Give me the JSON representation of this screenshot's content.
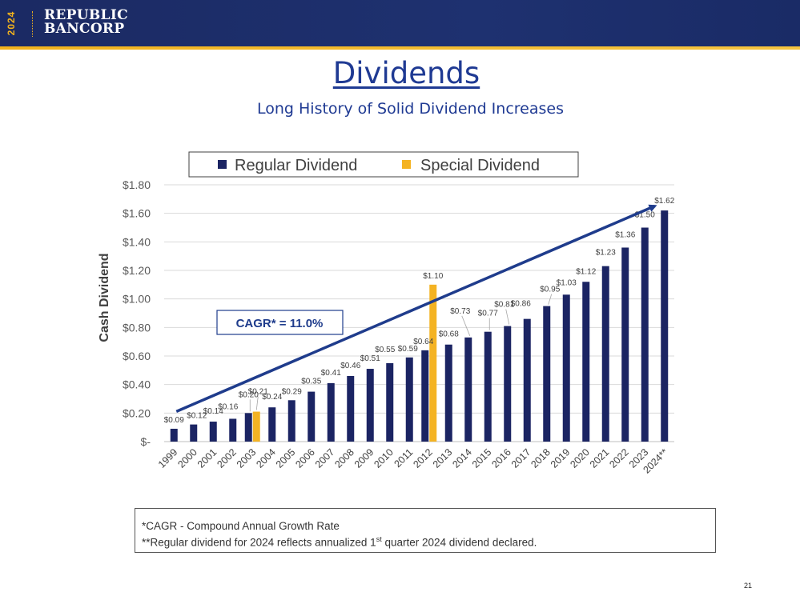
{
  "header": {
    "year": "2024",
    "brand_line1": "REPUBLIC",
    "brand_line2": "BANCORP"
  },
  "title": "Dividends",
  "subtitle": "Long History of Solid Dividend Increases",
  "chart_data": {
    "type": "bar",
    "ylabel": "Cash Dividend",
    "ylim": [
      0,
      1.8
    ],
    "yticks": [
      0,
      0.2,
      0.4,
      0.6,
      0.8,
      1.0,
      1.2,
      1.4,
      1.6,
      1.8
    ],
    "ytick_labels": [
      "$-",
      "$0.20",
      "$0.40",
      "$0.60",
      "$0.80",
      "$1.00",
      "$1.20",
      "$1.40",
      "$1.60",
      "$1.80"
    ],
    "grid": true,
    "legend": "top-center",
    "categories": [
      "1999",
      "2000",
      "2001",
      "2002",
      "2003",
      "2004",
      "2005",
      "2006",
      "2007",
      "2008",
      "2009",
      "2010",
      "2011",
      "2012",
      "2013",
      "2014",
      "2015",
      "2016",
      "2017",
      "2018",
      "2019",
      "2020",
      "2021",
      "2022",
      "2023",
      "2024**"
    ],
    "series": [
      {
        "name": "Regular Dividend",
        "color": "#1b2463",
        "values": [
          0.09,
          0.12,
          0.14,
          0.16,
          0.2,
          0.24,
          0.29,
          0.35,
          0.41,
          0.46,
          0.51,
          0.55,
          0.59,
          0.64,
          0.68,
          0.73,
          0.77,
          0.81,
          0.86,
          0.95,
          1.03,
          1.12,
          1.23,
          1.36,
          1.5,
          1.62
        ],
        "labels": [
          "$0.09",
          "$0.12",
          "$0.14",
          "$0.16",
          "$0.20",
          "$0.24",
          "$0.29",
          "$0.35",
          "$0.41",
          "$0.46",
          "$0.51",
          "$0.55",
          "$0.59",
          "$0.64",
          "$0.68",
          "$0.73",
          "$0.77",
          "$0.81",
          "$0.86",
          "$0.95",
          "$1.03",
          "$1.12",
          "$1.23",
          "$1.36",
          "$1.50",
          "$1.62"
        ]
      },
      {
        "name": "Special Dividend",
        "color": "#f4b323",
        "values": [
          null,
          null,
          null,
          null,
          0.21,
          null,
          null,
          null,
          null,
          null,
          null,
          null,
          null,
          1.1,
          null,
          null,
          null,
          null,
          null,
          null,
          null,
          null,
          null,
          null,
          null,
          null
        ],
        "labels": [
          null,
          null,
          null,
          null,
          "$0.21",
          null,
          null,
          null,
          null,
          null,
          null,
          null,
          null,
          "$1.10",
          null,
          null,
          null,
          null,
          null,
          null,
          null,
          null,
          null,
          null,
          null,
          null
        ]
      }
    ],
    "trend": {
      "from": {
        "x": "1999",
        "y": 0.2
      },
      "to": {
        "x": "2024**",
        "y": 1.64
      },
      "color": "#1f3c8c"
    },
    "annotation": "CAGR* = 11.0%"
  },
  "footnotes": {
    "line1": "*CAGR - Compound Annual Growth Rate",
    "line2_pre": "**Regular dividend for 2024 reflects annualized 1",
    "line2_sup": "st",
    "line2_post": " quarter 2024 dividend declared."
  },
  "page_number": "21"
}
